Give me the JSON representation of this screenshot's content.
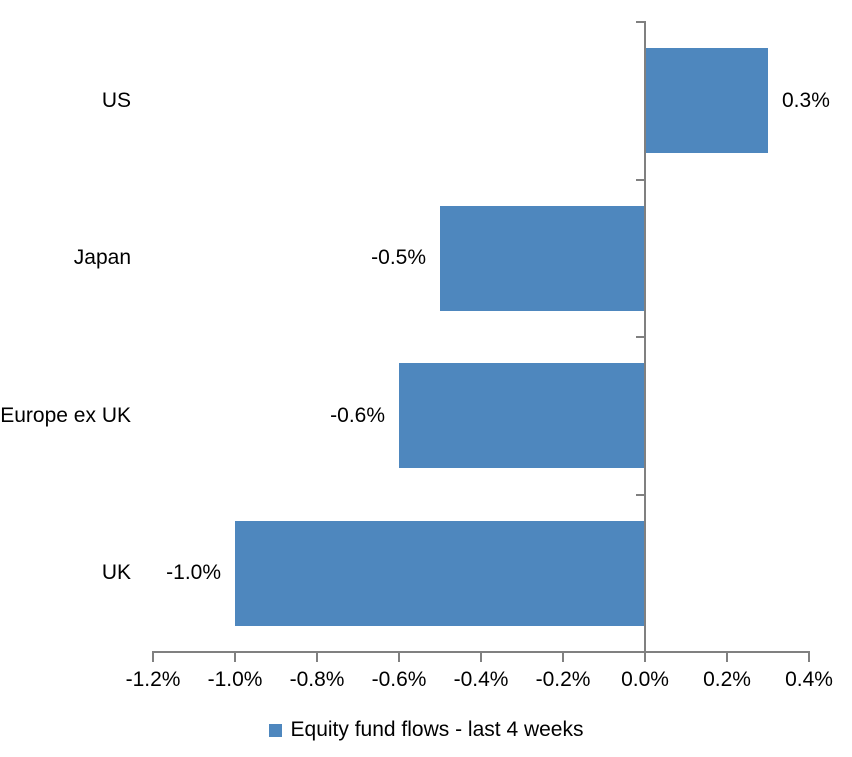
{
  "chart_data": {
    "type": "bar",
    "orientation": "horizontal",
    "title": "",
    "xlabel": "",
    "ylabel": "",
    "categories": [
      "US",
      "Japan",
      "Europe ex UK",
      "UK"
    ],
    "values": [
      0.3,
      -0.5,
      -0.6,
      -1.0
    ],
    "value_labels": [
      "0.3%",
      "-0.5%",
      "-0.6%",
      "-1.0%"
    ],
    "x_tick_labels": [
      "-1.2%",
      "-1.0%",
      "-0.8%",
      "-0.6%",
      "-0.4%",
      "-0.2%",
      "0.0%",
      "0.2%",
      "0.4%"
    ],
    "xlim": [
      -1.2,
      0.4
    ],
    "grid": false,
    "legend_position": "bottom",
    "legend_label": "Equity fund flows - last 4 weeks",
    "bar_color": "#4E87BE",
    "axis_color": "#808080",
    "label_color": "#000000"
  }
}
